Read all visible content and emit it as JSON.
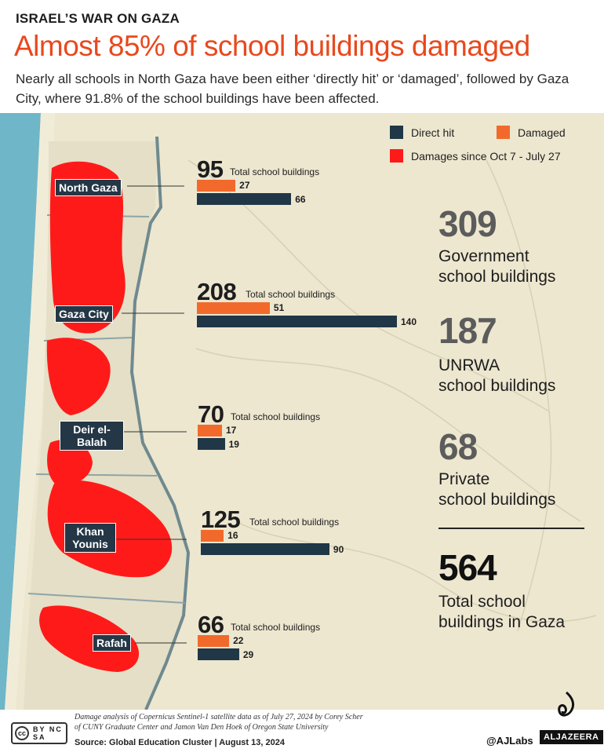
{
  "header": {
    "kicker": "ISRAEL’S WAR ON GAZA",
    "headline": "Almost 85% of school buildings damaged",
    "subtitle": "Nearly all schools in North Gaza have been either ‘directly hit’ or ‘damaged’, followed by Gaza City, where 91.8% of the school buildings have been affected."
  },
  "legend": {
    "direct_hit": "Direct hit",
    "damaged": "Damaged",
    "damages_since": "Damages since Oct 7 - July 27"
  },
  "colors": {
    "direct_hit": "#1f3746",
    "damaged": "#f26a2b",
    "damage_area": "#ff1a1a",
    "headline": "#e8491d"
  },
  "chart_data": {
    "type": "bar",
    "orientation": "horizontal",
    "categories": [
      "North Gaza",
      "Gaza City",
      "Deir el-Balah",
      "Khan Younis",
      "Rafah"
    ],
    "total_label": "Total school buildings",
    "totals": [
      95,
      208,
      70,
      125,
      66
    ],
    "series": [
      {
        "name": "Damaged",
        "values": [
          27,
          51,
          17,
          16,
          22
        ]
      },
      {
        "name": "Direct hit",
        "values": [
          66,
          140,
          19,
          90,
          29
        ]
      }
    ],
    "value_unit_scale_max": 140
  },
  "stats": [
    {
      "value": "309",
      "label_line1": "Government",
      "label_line2": "school buildings"
    },
    {
      "value": "187",
      "label_line1": "UNRWA",
      "label_line2": "school buildings"
    },
    {
      "value": "68",
      "label_line1": "Private",
      "label_line2": "school buildings"
    },
    {
      "value": "564",
      "label_line1": "Total school",
      "label_line2": "buildings in Gaza"
    }
  ],
  "footer": {
    "cc_text": "cc",
    "cc_badges": "BY NC SA",
    "note_line1": "Damage analysis of Copernicus Sentinel-1 satellite data as of July 27, 2024 by Corey Scher",
    "note_line2": "of CUNY Graduate Center and Jamon Van Den Hoek of Oregon State University",
    "source": "Source:  Global Education Cluster    |    August 13, 2024",
    "handle": "@AJLabs",
    "brand": "ALJAZEERA"
  }
}
